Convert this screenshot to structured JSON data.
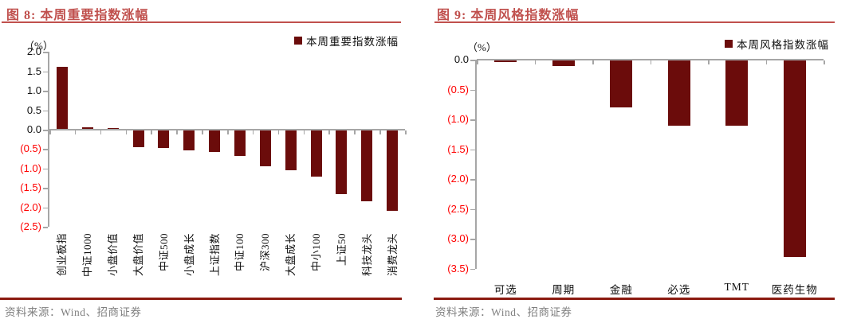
{
  "colors": {
    "accent_title": "#C0504D",
    "bar": "#6B0C0B",
    "negative_tick_label": "#FF0000",
    "positive_tick_label": "#111111",
    "axis_gray": "#A6A6A6",
    "footer_divider": "#8B1A10",
    "source_text": "#808080"
  },
  "chart_data": [
    {
      "type": "bar",
      "title": "图 8: 本周重要指数涨幅",
      "legend": "本周重要指数涨幅",
      "unit": "（%）",
      "categories": [
        "创业板指",
        "中证1000",
        "小盘价值",
        "大盘价值",
        "中证500",
        "小盘成长",
        "上证指数",
        "中证100",
        "沪深300",
        "大盘成长",
        "中小100",
        "上证50",
        "科技龙头",
        "消费龙头"
      ],
      "values": [
        1.61,
        0.07,
        0.04,
        -0.45,
        -0.48,
        -0.54,
        -0.57,
        -0.68,
        -0.95,
        -1.05,
        -1.2,
        -1.65,
        -1.85,
        -2.1
      ],
      "ylim": [
        -2.5,
        2.0
      ],
      "ytick_values": [
        2.0,
        1.5,
        1.0,
        0.5,
        0.0,
        -0.5,
        -1.0,
        -1.5,
        -2.0,
        -2.5
      ],
      "ytick_labels": [
        "2.0",
        "1.5",
        "1.0",
        "0.5",
        "0.0",
        "(0.5)",
        "(1.0)",
        "(1.5)",
        "(2.0)",
        "(2.5)"
      ],
      "grid": false,
      "legend_position": "top-right",
      "xlabel": "",
      "ylabel": "（%）",
      "source": "资料来源：Wind、招商证券"
    },
    {
      "type": "bar",
      "title": "图 9: 本周风格指数涨幅",
      "legend": "本周风格指数涨幅",
      "unit": "（%）",
      "categories": [
        "可选",
        "周期",
        "金融",
        "必选",
        "TMT",
        "医药生物"
      ],
      "values": [
        -0.04,
        -0.11,
        -0.8,
        -1.1,
        -1.1,
        -3.3
      ],
      "ylim": [
        -3.5,
        0.0
      ],
      "ytick_values": [
        0.0,
        -0.5,
        -1.0,
        -1.5,
        -2.0,
        -2.5,
        -3.0,
        -3.5
      ],
      "ytick_labels": [
        "0.0",
        "(0.5)",
        "(1.0)",
        "(1.5)",
        "(2.0)",
        "(2.5)",
        "(3.0)",
        "(3.5)"
      ],
      "grid": false,
      "legend_position": "top-right",
      "xlabel": "",
      "ylabel": "（%）",
      "source": "资料来源：Wind、招商证券"
    }
  ]
}
